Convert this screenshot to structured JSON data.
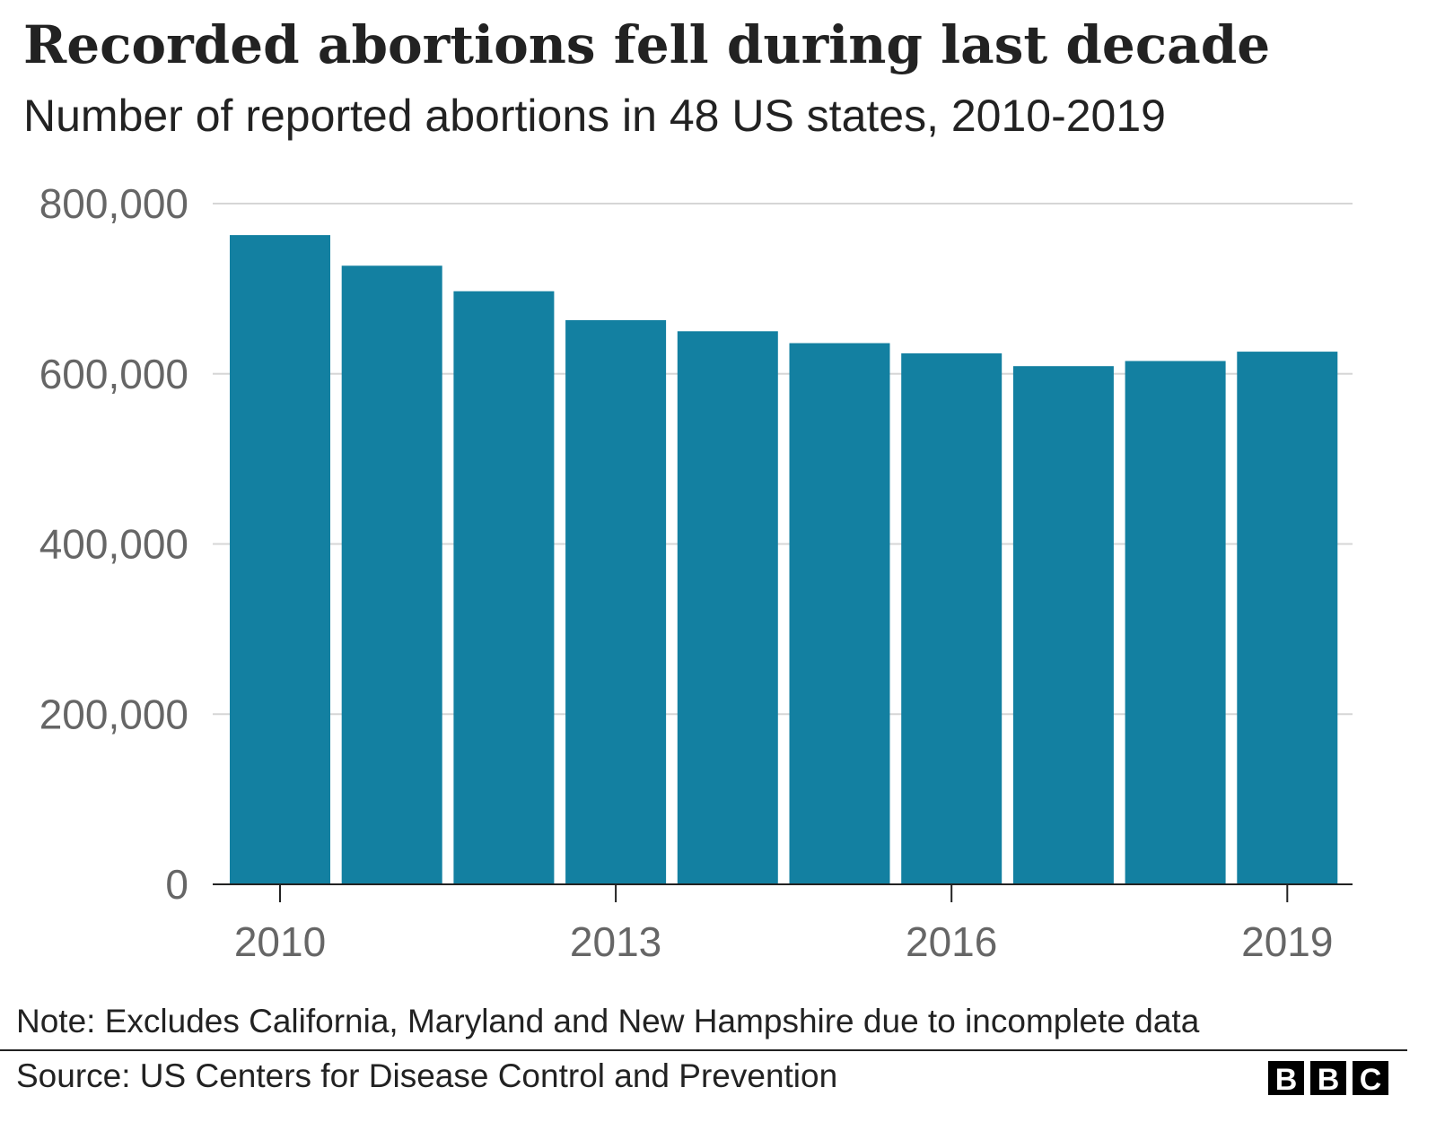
{
  "chart_data": {
    "type": "bar",
    "title": "Recorded abortions fell during last decade",
    "subtitle": "Number of reported abortions in 48 US states, 2010-2019",
    "categories": [
      "2010",
      "2011",
      "2012",
      "2013",
      "2014",
      "2015",
      "2016",
      "2017",
      "2018",
      "2019"
    ],
    "values": [
      763000,
      727000,
      697000,
      663000,
      650000,
      636000,
      624000,
      609000,
      615000,
      626000
    ],
    "xlabel": "",
    "ylabel": "",
    "ylim": [
      0,
      800000
    ],
    "yticks": [
      0,
      200000,
      400000,
      600000,
      800000
    ],
    "ytick_labels": [
      "0",
      "200,000",
      "400,000",
      "600,000",
      "800,000"
    ],
    "xtick_labels": [
      "2010",
      "2013",
      "2016",
      "2019"
    ],
    "grid": true,
    "bar_color": "#1380A1"
  },
  "note": "Note: Excludes California, Maryland and New Hampshire due to incomplete data",
  "source": "Source: US Centers for Disease Control and Prevention",
  "logo": "BBC"
}
